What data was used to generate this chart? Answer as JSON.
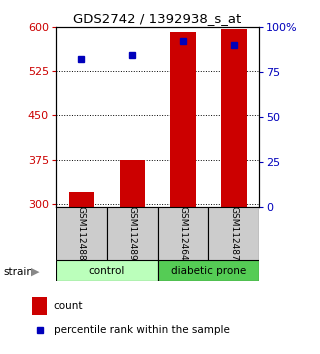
{
  "title": "GDS2742 / 1392938_s_at",
  "samples": [
    "GSM112488",
    "GSM112489",
    "GSM112464",
    "GSM112487"
  ],
  "count_values": [
    320,
    375,
    590,
    596
  ],
  "percentile_values": [
    82,
    84,
    92,
    90
  ],
  "ylim_left": [
    295,
    600
  ],
  "ylim_right": [
    0,
    100
  ],
  "yticks_left": [
    300,
    375,
    450,
    525,
    600
  ],
  "yticks_right": [
    0,
    25,
    50,
    75,
    100
  ],
  "bar_color": "#cc0000",
  "dot_color": "#0000bb",
  "label_color_left": "#cc0000",
  "label_color_right": "#0000bb",
  "legend_count_color": "#cc0000",
  "legend_pct_color": "#0000bb",
  "control_color": "#bbffbb",
  "diabetic_color": "#55cc55",
  "sample_box_color": "#cccccc",
  "bar_width": 0.5,
  "dot_size": 5,
  "groups": [
    {
      "name": "control",
      "indices": [
        0,
        1
      ]
    },
    {
      "name": "diabetic prone",
      "indices": [
        2,
        3
      ]
    }
  ]
}
